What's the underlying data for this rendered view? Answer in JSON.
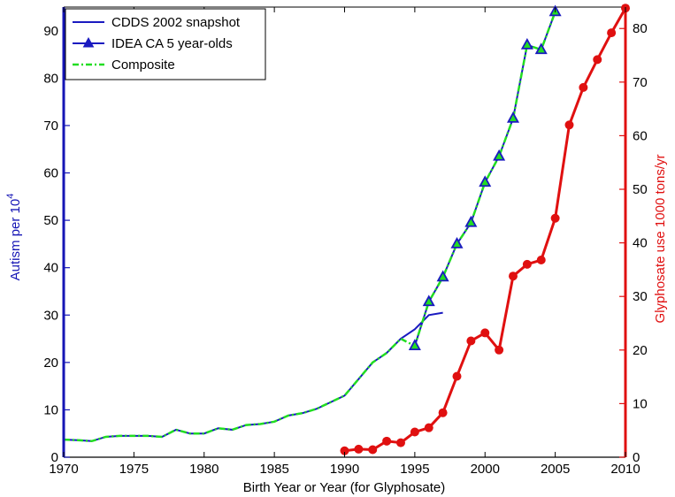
{
  "chart_data": {
    "type": "line",
    "xlabel": "Birth Year or Year (for Glyphosate)",
    "ylabel_left_base": "Autism per 10",
    "ylabel_left_sup": "4",
    "ylabel_right": "Glyphosate use 1000 tons/yr",
    "xlim": [
      1970,
      2010
    ],
    "ylim_left": [
      0,
      95
    ],
    "ylim_right": [
      0,
      84
    ],
    "x_ticks": [
      1970,
      1975,
      1980,
      1985,
      1990,
      1995,
      2000,
      2005,
      2010
    ],
    "y_ticks_left": [
      0,
      10,
      20,
      30,
      40,
      50,
      60,
      70,
      80,
      90
    ],
    "y_ticks_right": [
      0,
      10,
      20,
      30,
      40,
      50,
      60,
      70,
      80
    ],
    "legend_position": "top-left",
    "colors": {
      "left_axis": "#1515b5",
      "right_axis": "#e01010",
      "cdds": "#1a1ac0",
      "idea": "#1a1ac0",
      "composite": "#22dd22",
      "glyphosate": "#e01010"
    },
    "series": [
      {
        "name": "CDDS 2002 snapshot",
        "axis": "left",
        "x": [
          1970,
          1971,
          1972,
          1973,
          1974,
          1975,
          1976,
          1977,
          1978,
          1979,
          1980,
          1981,
          1982,
          1983,
          1984,
          1985,
          1986,
          1987,
          1988,
          1989,
          1990,
          1991,
          1992,
          1993,
          1994,
          1995,
          1996,
          1997
        ],
        "y": [
          3.7,
          3.6,
          3.4,
          4.3,
          4.5,
          4.5,
          4.5,
          4.3,
          5.8,
          5.0,
          5.0,
          6.1,
          5.8,
          6.8,
          7.0,
          7.5,
          8.8,
          9.3,
          10.2,
          11.6,
          13.0,
          16.5,
          20.0,
          22.0,
          25.0,
          27.0,
          30.0,
          30.5
        ]
      },
      {
        "name": "IDEA CA 5 year-olds",
        "axis": "left",
        "marker": "triangle",
        "x": [
          1995,
          1996,
          1997,
          1998,
          1999,
          2000,
          2001,
          2002,
          2003,
          2004,
          2005
        ],
        "y": [
          23.5,
          32.8,
          38.0,
          45.0,
          49.5,
          58.0,
          63.5,
          71.5,
          87.0,
          86.0,
          94.0
        ]
      },
      {
        "name": "Composite",
        "axis": "left",
        "x": [
          1970,
          1971,
          1972,
          1973,
          1974,
          1975,
          1976,
          1977,
          1978,
          1979,
          1980,
          1981,
          1982,
          1983,
          1984,
          1985,
          1986,
          1987,
          1988,
          1989,
          1990,
          1991,
          1992,
          1993,
          1994,
          1995,
          1996,
          1997,
          1998,
          1999,
          2000,
          2001,
          2002,
          2003,
          2004,
          2005
        ],
        "y": [
          3.7,
          3.6,
          3.4,
          4.3,
          4.5,
          4.5,
          4.5,
          4.3,
          5.8,
          5.0,
          5.0,
          6.1,
          5.8,
          6.8,
          7.0,
          7.5,
          8.8,
          9.3,
          10.2,
          11.6,
          13.0,
          16.5,
          20.0,
          22.0,
          25.0,
          23.5,
          32.8,
          38.0,
          45.0,
          49.5,
          58.0,
          63.5,
          71.5,
          87.0,
          86.0,
          94.0
        ]
      },
      {
        "name": "",
        "axis": "right",
        "marker": "circle",
        "x": [
          1990,
          1991,
          1992,
          1993,
          1994,
          1995,
          1996,
          1997,
          1998,
          1999,
          2000,
          2001,
          2002,
          2003,
          2004,
          2005,
          2006,
          2007,
          2008,
          2009,
          2010
        ],
        "y": [
          1.2,
          1.5,
          1.4,
          3.0,
          2.7,
          4.7,
          5.5,
          8.3,
          15.1,
          21.7,
          23.2,
          20.0,
          33.8,
          36.0,
          36.8,
          44.6,
          62.0,
          69.0,
          74.2,
          79.2,
          83.8
        ]
      }
    ]
  }
}
